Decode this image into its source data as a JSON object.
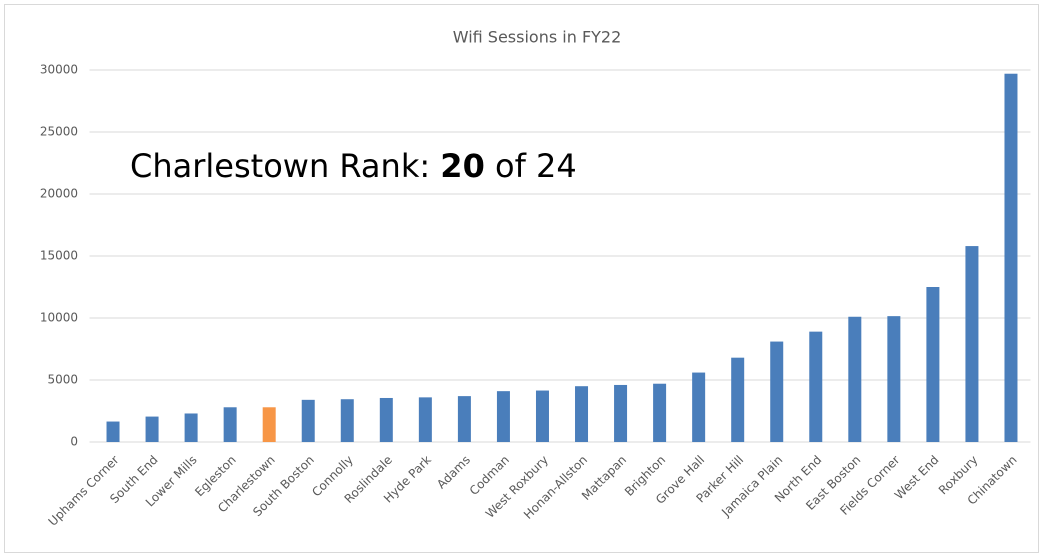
{
  "chart_data": {
    "type": "bar",
    "title": "Wifi Sessions in FY22",
    "annotation": [
      "Charlestown Rank:",
      "20",
      "of 24"
    ],
    "categories": [
      "Uphams Corner",
      "South End",
      "Lower Mills",
      "Egleston",
      "Charlestown",
      "South Boston",
      "Connolly",
      "Roslindale",
      "Hyde Park",
      "Adams",
      "Codman",
      "West Roxbury",
      "Honan-Allston",
      "Mattapan",
      "Brighton",
      "Grove Hall",
      "Parker Hill",
      "Jamaica Plain",
      "North End",
      "East Boston",
      "Fields Corner",
      "West End",
      "Roxbury",
      "Chinatown"
    ],
    "values": [
      1650,
      2050,
      2300,
      2800,
      2800,
      3400,
      3450,
      3550,
      3600,
      3700,
      4100,
      4150,
      4500,
      4600,
      4700,
      5600,
      6800,
      8100,
      8900,
      10100,
      10150,
      12500,
      15800,
      29700
    ],
    "colors": [
      "#4a7ebb",
      "#4a7ebb",
      "#4a7ebb",
      "#4a7ebb",
      "#f79646",
      "#4a7ebb",
      "#4a7ebb",
      "#4a7ebb",
      "#4a7ebb",
      "#4a7ebb",
      "#4a7ebb",
      "#4a7ebb",
      "#4a7ebb",
      "#4a7ebb",
      "#4a7ebb",
      "#4a7ebb",
      "#4a7ebb",
      "#4a7ebb",
      "#4a7ebb",
      "#4a7ebb",
      "#4a7ebb",
      "#4a7ebb",
      "#4a7ebb",
      "#4a7ebb"
    ],
    "ylim": [
      0,
      30000
    ],
    "yticks": [
      0,
      5000,
      10000,
      15000,
      20000,
      25000,
      30000
    ],
    "grid": true
  }
}
